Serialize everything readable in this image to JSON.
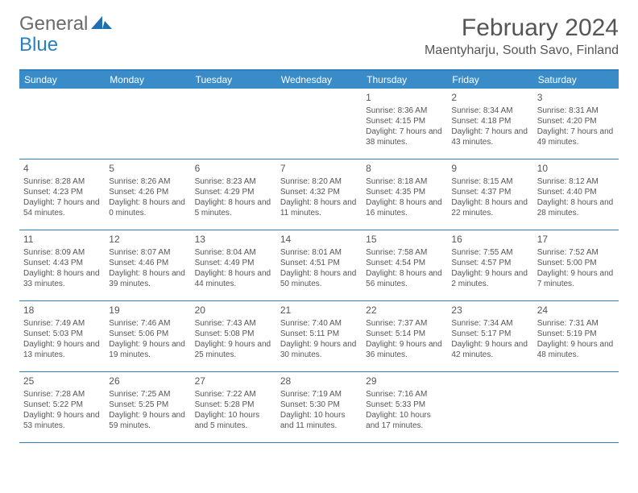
{
  "brand": {
    "part1": "General",
    "part2": "Blue"
  },
  "title": "February 2024",
  "location": "Maentyharju, South Savo, Finland",
  "colors": {
    "headerBar": "#3a8cc9",
    "rule": "#2f7fbf",
    "text": "#555555",
    "background": "#ffffff"
  },
  "dayNames": [
    "Sunday",
    "Monday",
    "Tuesday",
    "Wednesday",
    "Thursday",
    "Friday",
    "Saturday"
  ],
  "weeks": [
    [
      null,
      null,
      null,
      null,
      {
        "n": "1",
        "sr": "8:36 AM",
        "ss": "4:15 PM",
        "dl": "7 hours and 38 minutes."
      },
      {
        "n": "2",
        "sr": "8:34 AM",
        "ss": "4:18 PM",
        "dl": "7 hours and 43 minutes."
      },
      {
        "n": "3",
        "sr": "8:31 AM",
        "ss": "4:20 PM",
        "dl": "7 hours and 49 minutes."
      }
    ],
    [
      {
        "n": "4",
        "sr": "8:28 AM",
        "ss": "4:23 PM",
        "dl": "7 hours and 54 minutes."
      },
      {
        "n": "5",
        "sr": "8:26 AM",
        "ss": "4:26 PM",
        "dl": "8 hours and 0 minutes."
      },
      {
        "n": "6",
        "sr": "8:23 AM",
        "ss": "4:29 PM",
        "dl": "8 hours and 5 minutes."
      },
      {
        "n": "7",
        "sr": "8:20 AM",
        "ss": "4:32 PM",
        "dl": "8 hours and 11 minutes."
      },
      {
        "n": "8",
        "sr": "8:18 AM",
        "ss": "4:35 PM",
        "dl": "8 hours and 16 minutes."
      },
      {
        "n": "9",
        "sr": "8:15 AM",
        "ss": "4:37 PM",
        "dl": "8 hours and 22 minutes."
      },
      {
        "n": "10",
        "sr": "8:12 AM",
        "ss": "4:40 PM",
        "dl": "8 hours and 28 minutes."
      }
    ],
    [
      {
        "n": "11",
        "sr": "8:09 AM",
        "ss": "4:43 PM",
        "dl": "8 hours and 33 minutes."
      },
      {
        "n": "12",
        "sr": "8:07 AM",
        "ss": "4:46 PM",
        "dl": "8 hours and 39 minutes."
      },
      {
        "n": "13",
        "sr": "8:04 AM",
        "ss": "4:49 PM",
        "dl": "8 hours and 44 minutes."
      },
      {
        "n": "14",
        "sr": "8:01 AM",
        "ss": "4:51 PM",
        "dl": "8 hours and 50 minutes."
      },
      {
        "n": "15",
        "sr": "7:58 AM",
        "ss": "4:54 PM",
        "dl": "8 hours and 56 minutes."
      },
      {
        "n": "16",
        "sr": "7:55 AM",
        "ss": "4:57 PM",
        "dl": "9 hours and 2 minutes."
      },
      {
        "n": "17",
        "sr": "7:52 AM",
        "ss": "5:00 PM",
        "dl": "9 hours and 7 minutes."
      }
    ],
    [
      {
        "n": "18",
        "sr": "7:49 AM",
        "ss": "5:03 PM",
        "dl": "9 hours and 13 minutes."
      },
      {
        "n": "19",
        "sr": "7:46 AM",
        "ss": "5:06 PM",
        "dl": "9 hours and 19 minutes."
      },
      {
        "n": "20",
        "sr": "7:43 AM",
        "ss": "5:08 PM",
        "dl": "9 hours and 25 minutes."
      },
      {
        "n": "21",
        "sr": "7:40 AM",
        "ss": "5:11 PM",
        "dl": "9 hours and 30 minutes."
      },
      {
        "n": "22",
        "sr": "7:37 AM",
        "ss": "5:14 PM",
        "dl": "9 hours and 36 minutes."
      },
      {
        "n": "23",
        "sr": "7:34 AM",
        "ss": "5:17 PM",
        "dl": "9 hours and 42 minutes."
      },
      {
        "n": "24",
        "sr": "7:31 AM",
        "ss": "5:19 PM",
        "dl": "9 hours and 48 minutes."
      }
    ],
    [
      {
        "n": "25",
        "sr": "7:28 AM",
        "ss": "5:22 PM",
        "dl": "9 hours and 53 minutes."
      },
      {
        "n": "26",
        "sr": "7:25 AM",
        "ss": "5:25 PM",
        "dl": "9 hours and 59 minutes."
      },
      {
        "n": "27",
        "sr": "7:22 AM",
        "ss": "5:28 PM",
        "dl": "10 hours and 5 minutes."
      },
      {
        "n": "28",
        "sr": "7:19 AM",
        "ss": "5:30 PM",
        "dl": "10 hours and 11 minutes."
      },
      {
        "n": "29",
        "sr": "7:16 AM",
        "ss": "5:33 PM",
        "dl": "10 hours and 17 minutes."
      },
      null,
      null
    ]
  ],
  "labels": {
    "sunrise": "Sunrise: ",
    "sunset": "Sunset: ",
    "daylight": "Daylight: "
  }
}
